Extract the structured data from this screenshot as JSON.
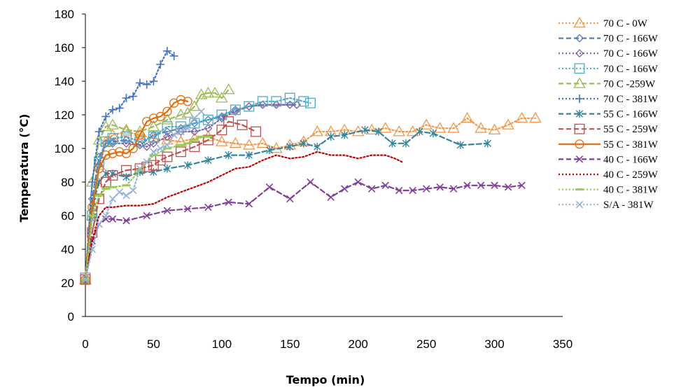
{
  "chart_data": {
    "type": "line",
    "xlabel": "Tempo (min)",
    "ylabel": "Temperatura (°C)",
    "xlim": [
      0,
      350
    ],
    "ylim": [
      0,
      180
    ],
    "x_ticks": [
      0,
      50,
      100,
      150,
      200,
      250,
      300,
      350
    ],
    "y_ticks": [
      0,
      20,
      40,
      60,
      80,
      100,
      120,
      140,
      160,
      180
    ],
    "grid": false,
    "legend_position": "right",
    "series": [
      {
        "name": "70 C - 0W",
        "color": "#F79646",
        "dash": "dot",
        "marker": "triangle",
        "x": [
          0,
          5,
          10,
          15,
          20,
          30,
          40,
          50,
          60,
          70,
          80,
          90,
          100,
          110,
          120,
          130,
          140,
          150,
          160,
          170,
          180,
          190,
          200,
          210,
          220,
          230,
          240,
          250,
          260,
          270,
          280,
          290,
          300,
          310,
          320,
          330
        ],
        "y": [
          22,
          60,
          90,
          104,
          108,
          110,
          108,
          106,
          105,
          104,
          106,
          107,
          104,
          103,
          102,
          103,
          100,
          102,
          104,
          110,
          110,
          111,
          110,
          111,
          112,
          110,
          110,
          114,
          112,
          112,
          118,
          112,
          111,
          114,
          118,
          118
        ]
      },
      {
        "name": "70 C - 166W",
        "color": "#4F81BD",
        "dash": "dash",
        "marker": "diamond",
        "x": [
          0,
          5,
          10,
          15,
          20,
          30,
          40,
          50,
          60,
          70,
          80,
          90,
          100,
          110,
          120,
          130,
          140,
          150,
          155
        ],
        "y": [
          22,
          70,
          95,
          103,
          104,
          105,
          102,
          108,
          110,
          112,
          115,
          117,
          119,
          123,
          125,
          126,
          126,
          126,
          126
        ]
      },
      {
        "name": "70 C - 166W",
        "color": "#8064A2",
        "dash": "dot",
        "marker": "diamond",
        "x": [
          0,
          5,
          10,
          15,
          20,
          30,
          40,
          45,
          50,
          60,
          70,
          80,
          90,
          100,
          110,
          120,
          130,
          140,
          150,
          155
        ],
        "y": [
          22,
          60,
          90,
          103,
          103,
          103,
          102,
          101,
          103,
          107,
          110,
          110,
          112,
          118,
          122,
          125,
          126,
          126,
          126,
          126
        ]
      },
      {
        "name": "70 C - 166W",
        "color": "#4BACC6",
        "dash": "dot",
        "marker": "square",
        "x": [
          0,
          5,
          10,
          15,
          20,
          30,
          40,
          50,
          60,
          70,
          80,
          90,
          100,
          110,
          120,
          130,
          140,
          150,
          160,
          165
        ],
        "y": [
          23,
          60,
          92,
          104,
          106,
          107,
          104,
          107,
          113,
          113,
          115,
          117,
          120,
          123,
          125,
          128,
          128,
          130,
          128,
          127
        ]
      },
      {
        "name": "70 C -259W",
        "color": "#9BBB59",
        "dash": "dash",
        "marker": "triangle",
        "x": [
          0,
          5,
          10,
          15,
          20,
          30,
          40,
          50,
          60,
          70,
          75,
          80,
          85,
          90,
          95,
          100,
          105
        ],
        "y": [
          22,
          80,
          105,
          113,
          114,
          111,
          110,
          113,
          117,
          120,
          121,
          125,
          132,
          133,
          133,
          130,
          135
        ]
      },
      {
        "name": "70 C - 381W",
        "color": "#4472C4",
        "dash": "dot",
        "marker": "plus",
        "x": [
          0,
          5,
          10,
          15,
          20,
          25,
          30,
          35,
          40,
          45,
          50,
          55,
          60,
          65
        ],
        "y": [
          22,
          80,
          110,
          119,
          123,
          124,
          130,
          131,
          139,
          138,
          140,
          150,
          158,
          155
        ]
      },
      {
        "name": "55 C - 166W",
        "color": "#31859C",
        "dash": "dash",
        "marker": "asterisk",
        "x": [
          0,
          5,
          10,
          15,
          20,
          30,
          40,
          50,
          60,
          75,
          90,
          105,
          120,
          135,
          150,
          160,
          170,
          180,
          190,
          205,
          215,
          225,
          235,
          245,
          255,
          275,
          295
        ],
        "y": [
          22,
          65,
          80,
          85,
          85,
          83,
          86,
          86,
          88,
          90,
          93,
          96,
          96,
          99,
          101,
          103,
          101,
          107,
          108,
          111,
          110,
          103,
          103,
          110,
          109,
          102,
          103
        ]
      },
      {
        "name": "55 C - 259W",
        "color": "#C0504D",
        "dash": "dash",
        "marker": "square",
        "x": [
          0,
          5,
          10,
          15,
          20,
          30,
          40,
          45,
          50,
          55,
          60,
          70,
          80,
          90,
          100,
          105,
          115,
          125
        ],
        "y": [
          22,
          50,
          70,
          80,
          84,
          87,
          88,
          89,
          90,
          93,
          95,
          98,
          101,
          105,
          111,
          116,
          114,
          110
        ]
      },
      {
        "name": "55 C - 381W",
        "color": "#E36C09",
        "dash": "solid",
        "marker": "circle",
        "x": [
          0,
          5,
          10,
          15,
          20,
          25,
          30,
          35,
          40,
          45,
          50,
          55,
          60,
          65,
          70,
          75
        ],
        "y": [
          22,
          65,
          88,
          96,
          97,
          98,
          97,
          100,
          108,
          116,
          118,
          119,
          122,
          127,
          129,
          128
        ]
      },
      {
        "name": "40 C - 166W",
        "color": "#7F3F98",
        "dash": "dash",
        "marker": "x",
        "x": [
          0,
          5,
          10,
          15,
          20,
          30,
          45,
          60,
          75,
          90,
          105,
          120,
          135,
          150,
          165,
          180,
          190,
          200,
          210,
          220,
          230,
          240,
          250,
          260,
          270,
          280,
          290,
          300,
          310,
          320
        ],
        "y": [
          22,
          45,
          55,
          58,
          58,
          57,
          60,
          63,
          64,
          65,
          68,
          67,
          77,
          70,
          80,
          71,
          76,
          80,
          76,
          78,
          75,
          75,
          76,
          77,
          76,
          78,
          78,
          78,
          77,
          78
        ]
      },
      {
        "name": "40 C - 259W",
        "color": "#C00000",
        "dash": "dot",
        "marker": "none",
        "x": [
          0,
          5,
          10,
          15,
          20,
          30,
          40,
          50,
          60,
          70,
          80,
          90,
          100,
          110,
          120,
          130,
          140,
          150,
          160,
          170,
          180,
          190,
          200,
          210,
          220,
          227,
          232
        ],
        "y": [
          22,
          45,
          60,
          65,
          65,
          66,
          66,
          67,
          71,
          74,
          77,
          80,
          84,
          88,
          89,
          93,
          96,
          94,
          95,
          98,
          96,
          96,
          94,
          96,
          96,
          94,
          92
        ]
      },
      {
        "name": "40 C - 381W",
        "color": "#92D050",
        "dash": "dot",
        "marker": "dashmark",
        "x": [
          0,
          5,
          10,
          15,
          20,
          30,
          40,
          50,
          60,
          70,
          75,
          80,
          85,
          90
        ],
        "y": [
          22,
          60,
          72,
          76,
          77,
          78,
          87,
          96,
          100,
          102,
          103,
          105,
          107,
          107
        ]
      },
      {
        "name": "S/A - 381W",
        "color": "#95B3D7",
        "dash": "dot",
        "marker": "x",
        "x": [
          0,
          5,
          10,
          15,
          20,
          25,
          30,
          35,
          40,
          45,
          50,
          55,
          60,
          65,
          70,
          75,
          80,
          85
        ],
        "y": [
          22,
          40,
          55,
          60,
          70,
          74,
          72,
          75,
          88,
          92,
          98,
          100,
          102,
          108,
          110,
          112,
          118,
          122
        ]
      }
    ]
  }
}
